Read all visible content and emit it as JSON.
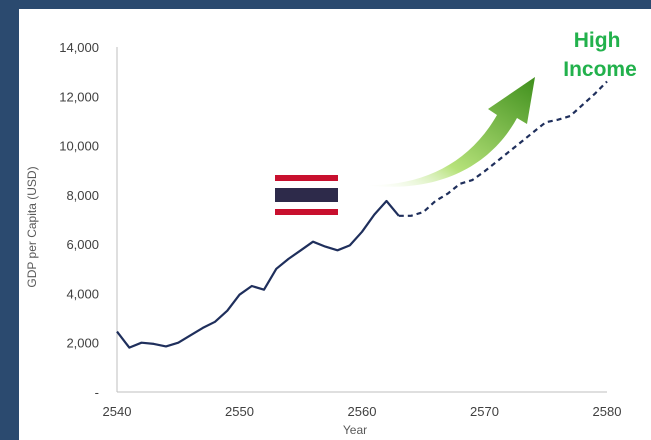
{
  "chart_data": {
    "type": "line",
    "title": "",
    "xlabel": "Year",
    "ylabel": "GDP per Capita (USD)",
    "xlim": [
      2540,
      2580
    ],
    "ylim": [
      0,
      14000
    ],
    "x_ticks": [
      "2540",
      "2550",
      "2560",
      "2570",
      "2580"
    ],
    "y_ticks": [
      "-",
      "2,000",
      "4,000",
      "6,000",
      "8,000",
      "10,000",
      "12,000",
      "14,000"
    ],
    "grid": false,
    "legend": "none",
    "series": [
      {
        "style": "solid",
        "color": "#1f2f5c",
        "points": [
          [
            2540,
            2450
          ],
          [
            2541,
            1800
          ],
          [
            2542,
            2000
          ],
          [
            2543,
            1950
          ],
          [
            2544,
            1850
          ],
          [
            2545,
            2000
          ],
          [
            2546,
            2300
          ],
          [
            2547,
            2600
          ],
          [
            2548,
            2850
          ],
          [
            2549,
            3300
          ],
          [
            2550,
            3950
          ],
          [
            2551,
            4300
          ],
          [
            2552,
            4150
          ],
          [
            2553,
            5000
          ],
          [
            2554,
            5400
          ],
          [
            2555,
            5750
          ],
          [
            2556,
            6100
          ],
          [
            2557,
            5900
          ],
          [
            2558,
            5750
          ],
          [
            2559,
            5950
          ],
          [
            2560,
            6500
          ],
          [
            2561,
            7200
          ],
          [
            2562,
            7750
          ],
          [
            2563,
            7150
          ]
        ]
      },
      {
        "style": "dashed",
        "color": "#1f2f5c",
        "points": [
          [
            2563,
            7150
          ],
          [
            2564,
            7150
          ],
          [
            2565,
            7300
          ],
          [
            2566,
            7750
          ],
          [
            2567,
            8050
          ],
          [
            2568,
            8450
          ],
          [
            2569,
            8600
          ],
          [
            2570,
            8950
          ],
          [
            2571,
            9350
          ],
          [
            2572,
            9750
          ],
          [
            2573,
            10150
          ],
          [
            2574,
            10550
          ],
          [
            2575,
            10950
          ],
          [
            2576,
            11050
          ],
          [
            2577,
            11200
          ],
          [
            2578,
            11650
          ],
          [
            2579,
            12100
          ],
          [
            2580,
            12600
          ]
        ]
      }
    ],
    "annotations": [
      {
        "text_lines": [
          "High",
          "Income"
        ],
        "color": "#22b14c"
      }
    ]
  },
  "icons": {
    "flag": "thailand-flag-icon",
    "arrow": "green-growth-arrow-icon"
  },
  "colors": {
    "background": "#2b4a6f",
    "line": "#1f2f5c",
    "arrow_dark": "#3f8f1c",
    "arrow_light": "#b6e27a",
    "flag_red": "#c8102e",
    "flag_blue": "#2d2a4a"
  }
}
